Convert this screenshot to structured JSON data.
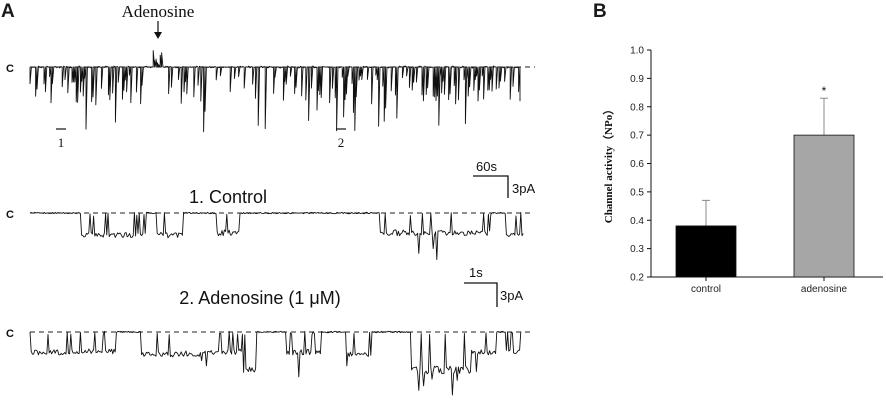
{
  "panel_a": {
    "label": "A",
    "arrow_label": "Adenosine",
    "closed_marker": "C",
    "segment_marks": [
      "1",
      "2"
    ],
    "scale_top": {
      "time": "60s",
      "current": "3pA"
    },
    "scale_bottom": {
      "time": "1s",
      "current": "3pA"
    },
    "trace_titles": [
      "1. Control",
      "2. Adenosine (1 μM)"
    ]
  },
  "panel_b": {
    "label": "B"
  },
  "chart_data": {
    "type": "bar",
    "categories": [
      "control",
      "adenosine"
    ],
    "values": [
      0.38,
      0.7
    ],
    "errors": [
      0.09,
      0.13
    ],
    "significance": [
      "",
      "*"
    ],
    "bar_colors": [
      "#000000",
      "#a6a6a6"
    ],
    "ylabel": "Channel activity（NPo）",
    "xlabel": "",
    "ylim": [
      0.2,
      1.0
    ],
    "yticks": [
      "0.2",
      "0.3",
      "0.4",
      "0.5",
      "0.6",
      "0.7",
      "0.8",
      "0.9",
      "1.0"
    ]
  }
}
